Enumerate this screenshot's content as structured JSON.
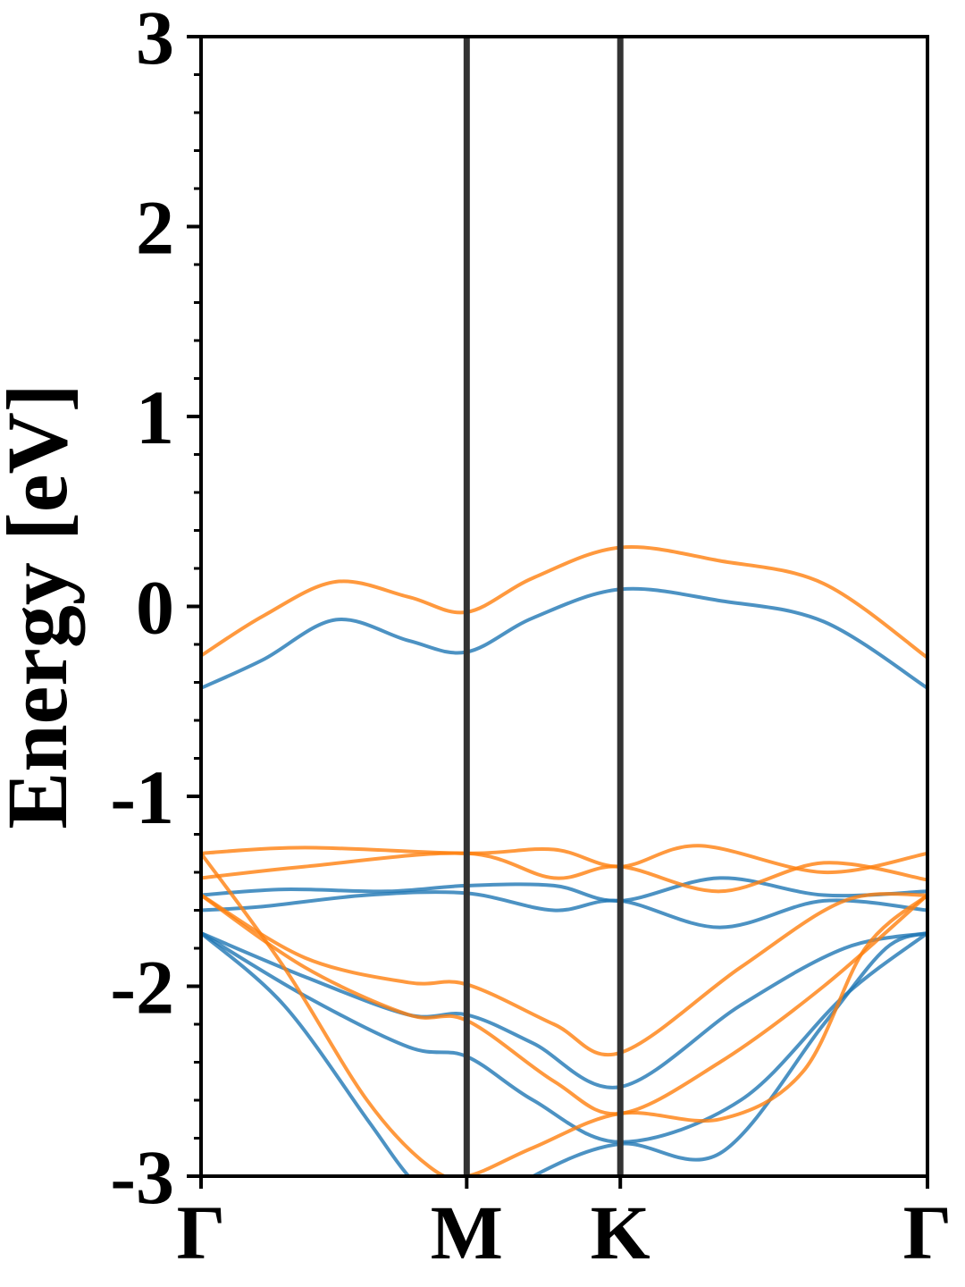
{
  "chart_data": {
    "type": "line",
    "title": "",
    "xlabel": "",
    "ylabel": "Energy [eV]",
    "ylim": [
      -3,
      3
    ],
    "xlim": [
      0,
      3.5
    ],
    "y_ticks": [
      -3,
      -2,
      -1,
      0,
      1,
      2,
      3
    ],
    "y_tick_labels": [
      "-3",
      "-2",
      "-1",
      "0",
      "1",
      "2",
      "3"
    ],
    "y_minor_step": 0.2,
    "k_points": [
      {
        "label": "Γ",
        "x": 0
      },
      {
        "label": "M",
        "x": 1.28
      },
      {
        "label": "K",
        "x": 2.02
      },
      {
        "label": "Γ",
        "x": 3.5
      }
    ],
    "k_path_separators": [
      1.28,
      2.02
    ],
    "colors": {
      "series_blue": "#1f77b4",
      "series_orange": "#ff7f0e",
      "separator": "#333333"
    },
    "grid": false,
    "series": [
      {
        "color": "#1f77b4",
        "points": [
          [
            0,
            -0.43
          ],
          [
            0.3,
            -0.28
          ],
          [
            0.65,
            -0.07
          ],
          [
            1.0,
            -0.18
          ],
          [
            1.28,
            -0.24
          ],
          [
            1.6,
            -0.06
          ],
          [
            2.02,
            0.09
          ],
          [
            2.5,
            0.03
          ],
          [
            3.0,
            -0.08
          ],
          [
            3.5,
            -0.43
          ]
        ]
      },
      {
        "color": "#1f77b4",
        "points": [
          [
            0,
            -1.52
          ],
          [
            0.4,
            -1.49
          ],
          [
            0.9,
            -1.5
          ],
          [
            1.28,
            -1.47
          ],
          [
            1.7,
            -1.47
          ],
          [
            2.02,
            -1.55
          ],
          [
            2.5,
            -1.43
          ],
          [
            3.0,
            -1.52
          ],
          [
            3.5,
            -1.5
          ]
        ]
      },
      {
        "color": "#1f77b4",
        "points": [
          [
            0,
            -1.6
          ],
          [
            0.3,
            -1.58
          ],
          [
            0.8,
            -1.52
          ],
          [
            1.28,
            -1.51
          ],
          [
            1.7,
            -1.6
          ],
          [
            2.02,
            -1.55
          ],
          [
            2.5,
            -1.69
          ],
          [
            3.0,
            -1.55
          ],
          [
            3.5,
            -1.6
          ]
        ]
      },
      {
        "color": "#1f77b4",
        "points": [
          [
            0,
            -1.72
          ],
          [
            0.5,
            -1.95
          ],
          [
            1.0,
            -2.15
          ],
          [
            1.28,
            -2.15
          ],
          [
            1.6,
            -2.3
          ],
          [
            2.02,
            -2.53
          ],
          [
            2.6,
            -2.1
          ],
          [
            3.1,
            -1.8
          ],
          [
            3.5,
            -1.72
          ]
        ]
      },
      {
        "color": "#1f77b4",
        "points": [
          [
            0,
            -1.72
          ],
          [
            0.5,
            -2.05
          ],
          [
            1.0,
            -2.32
          ],
          [
            1.28,
            -2.37
          ],
          [
            1.6,
            -2.6
          ],
          [
            2.02,
            -2.82
          ],
          [
            2.6,
            -2.6
          ],
          [
            3.1,
            -2.05
          ],
          [
            3.5,
            -1.72
          ]
        ]
      },
      {
        "color": "#1f77b4",
        "points": [
          [
            0,
            -1.72
          ],
          [
            0.4,
            -2.1
          ],
          [
            0.8,
            -2.7
          ],
          [
            1.0,
            -3.0
          ],
          [
            1.2,
            -3.2
          ],
          [
            1.28,
            -3.25
          ],
          [
            1.6,
            -3.0
          ],
          [
            2.02,
            -2.83
          ],
          [
            2.5,
            -2.88
          ],
          [
            3.0,
            -2.2
          ],
          [
            3.3,
            -1.8
          ],
          [
            3.5,
            -1.72
          ]
        ]
      },
      {
        "color": "#ff7f0e",
        "points": [
          [
            0,
            -0.26
          ],
          [
            0.3,
            -0.05
          ],
          [
            0.65,
            0.13
          ],
          [
            1.0,
            0.05
          ],
          [
            1.28,
            -0.03
          ],
          [
            1.6,
            0.15
          ],
          [
            2.02,
            0.31
          ],
          [
            2.5,
            0.24
          ],
          [
            3.0,
            0.12
          ],
          [
            3.5,
            -0.27
          ]
        ]
      },
      {
        "color": "#ff7f0e",
        "points": [
          [
            0,
            -1.3
          ],
          [
            0.5,
            -1.27
          ],
          [
            1.28,
            -1.3
          ],
          [
            1.7,
            -1.28
          ],
          [
            2.02,
            -1.37
          ],
          [
            2.4,
            -1.26
          ],
          [
            3.0,
            -1.4
          ],
          [
            3.5,
            -1.3
          ]
        ]
      },
      {
        "color": "#ff7f0e",
        "points": [
          [
            0,
            -1.43
          ],
          [
            0.5,
            -1.37
          ],
          [
            1.28,
            -1.3
          ],
          [
            1.7,
            -1.43
          ],
          [
            2.02,
            -1.37
          ],
          [
            2.5,
            -1.5
          ],
          [
            3.0,
            -1.35
          ],
          [
            3.5,
            -1.44
          ]
        ]
      },
      {
        "color": "#ff7f0e",
        "points": [
          [
            0,
            -1.52
          ],
          [
            0.5,
            -1.85
          ],
          [
            1.0,
            -1.98
          ],
          [
            1.28,
            -1.99
          ],
          [
            1.7,
            -2.2
          ],
          [
            2.02,
            -2.35
          ],
          [
            2.6,
            -1.9
          ],
          [
            3.1,
            -1.55
          ],
          [
            3.5,
            -1.52
          ]
        ]
      },
      {
        "color": "#ff7f0e",
        "points": [
          [
            0,
            -1.52
          ],
          [
            0.5,
            -1.9
          ],
          [
            1.0,
            -2.15
          ],
          [
            1.28,
            -2.18
          ],
          [
            1.7,
            -2.5
          ],
          [
            2.02,
            -2.67
          ],
          [
            2.5,
            -2.4
          ],
          [
            3.0,
            -2.0
          ],
          [
            3.5,
            -1.52
          ]
        ]
      },
      {
        "color": "#ff7f0e",
        "points": [
          [
            0,
            -1.3
          ],
          [
            0.4,
            -1.9
          ],
          [
            0.8,
            -2.6
          ],
          [
            1.1,
            -2.95
          ],
          [
            1.28,
            -3.0
          ],
          [
            1.6,
            -2.85
          ],
          [
            2.02,
            -2.67
          ],
          [
            2.5,
            -2.7
          ],
          [
            2.9,
            -2.45
          ],
          [
            3.2,
            -1.8
          ],
          [
            3.5,
            -1.52
          ]
        ]
      }
    ]
  }
}
